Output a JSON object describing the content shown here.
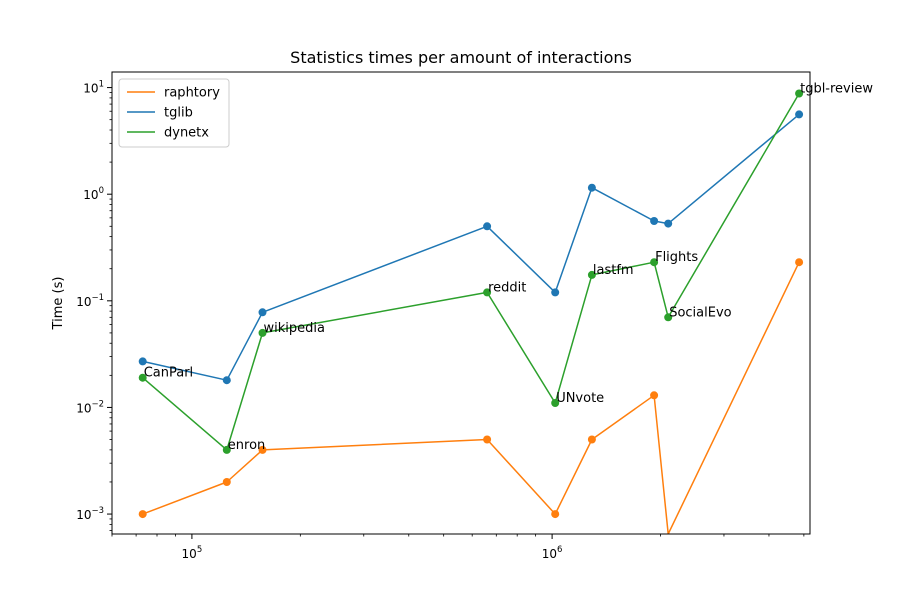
{
  "chart_data": {
    "type": "line",
    "title": "Statistics times per amount of interactions",
    "xlabel": "",
    "ylabel": "Time (s)",
    "xscale": "log",
    "yscale": "log",
    "xlim": [
      60000,
      5200000
    ],
    "ylim": [
      0.00065,
      14
    ],
    "grid": false,
    "legend_position": "top-left",
    "x_ticks": [
      {
        "value": 100000,
        "base": "10",
        "exp": "5"
      },
      {
        "value": 1000000,
        "base": "10",
        "exp": "6"
      }
    ],
    "y_ticks": [
      {
        "value": 0.001,
        "base": "10",
        "exp": "−3"
      },
      {
        "value": 0.01,
        "base": "10",
        "exp": "−2"
      },
      {
        "value": 0.1,
        "base": "10",
        "exp": "−1"
      },
      {
        "value": 1,
        "base": "10",
        "exp": "0"
      },
      {
        "value": 10,
        "base": "10",
        "exp": "1"
      }
    ],
    "x": [
      73000,
      125000,
      157000,
      660000,
      1020000,
      1290000,
      1920000,
      2100000,
      4850000
    ],
    "series": [
      {
        "name": "raphtory",
        "color": "#ff7f0e",
        "values": [
          0.001,
          0.002,
          0.004,
          0.005,
          0.001,
          0.005,
          0.013,
          0,
          0.23
        ]
      },
      {
        "name": "tglib",
        "color": "#1f77b4",
        "values": [
          0.027,
          0.018,
          0.078,
          0.5,
          0.12,
          1.15,
          0.56,
          0.53,
          5.6
        ]
      },
      {
        "name": "dynetx",
        "color": "#2ca02c",
        "values": [
          0.019,
          0.004,
          0.05,
          0.12,
          0.011,
          0.175,
          0.23,
          0.07,
          8.8
        ]
      }
    ],
    "annotations": [
      {
        "text": "CanParl",
        "x": 73000,
        "y": 0.019
      },
      {
        "text": "enron",
        "x": 125000,
        "y": 0.004
      },
      {
        "text": "wikipedia",
        "x": 157000,
        "y": 0.05
      },
      {
        "text": "reddit",
        "x": 660000,
        "y": 0.12
      },
      {
        "text": "UNvote",
        "x": 1020000,
        "y": 0.011
      },
      {
        "text": "lastfm",
        "x": 1290000,
        "y": 0.175
      },
      {
        "text": "Flights",
        "x": 1920000,
        "y": 0.23
      },
      {
        "text": "SocialEvo",
        "x": 2100000,
        "y": 0.07
      },
      {
        "text": "tgbl-review",
        "x": 4850000,
        "y": 8.8
      }
    ]
  }
}
